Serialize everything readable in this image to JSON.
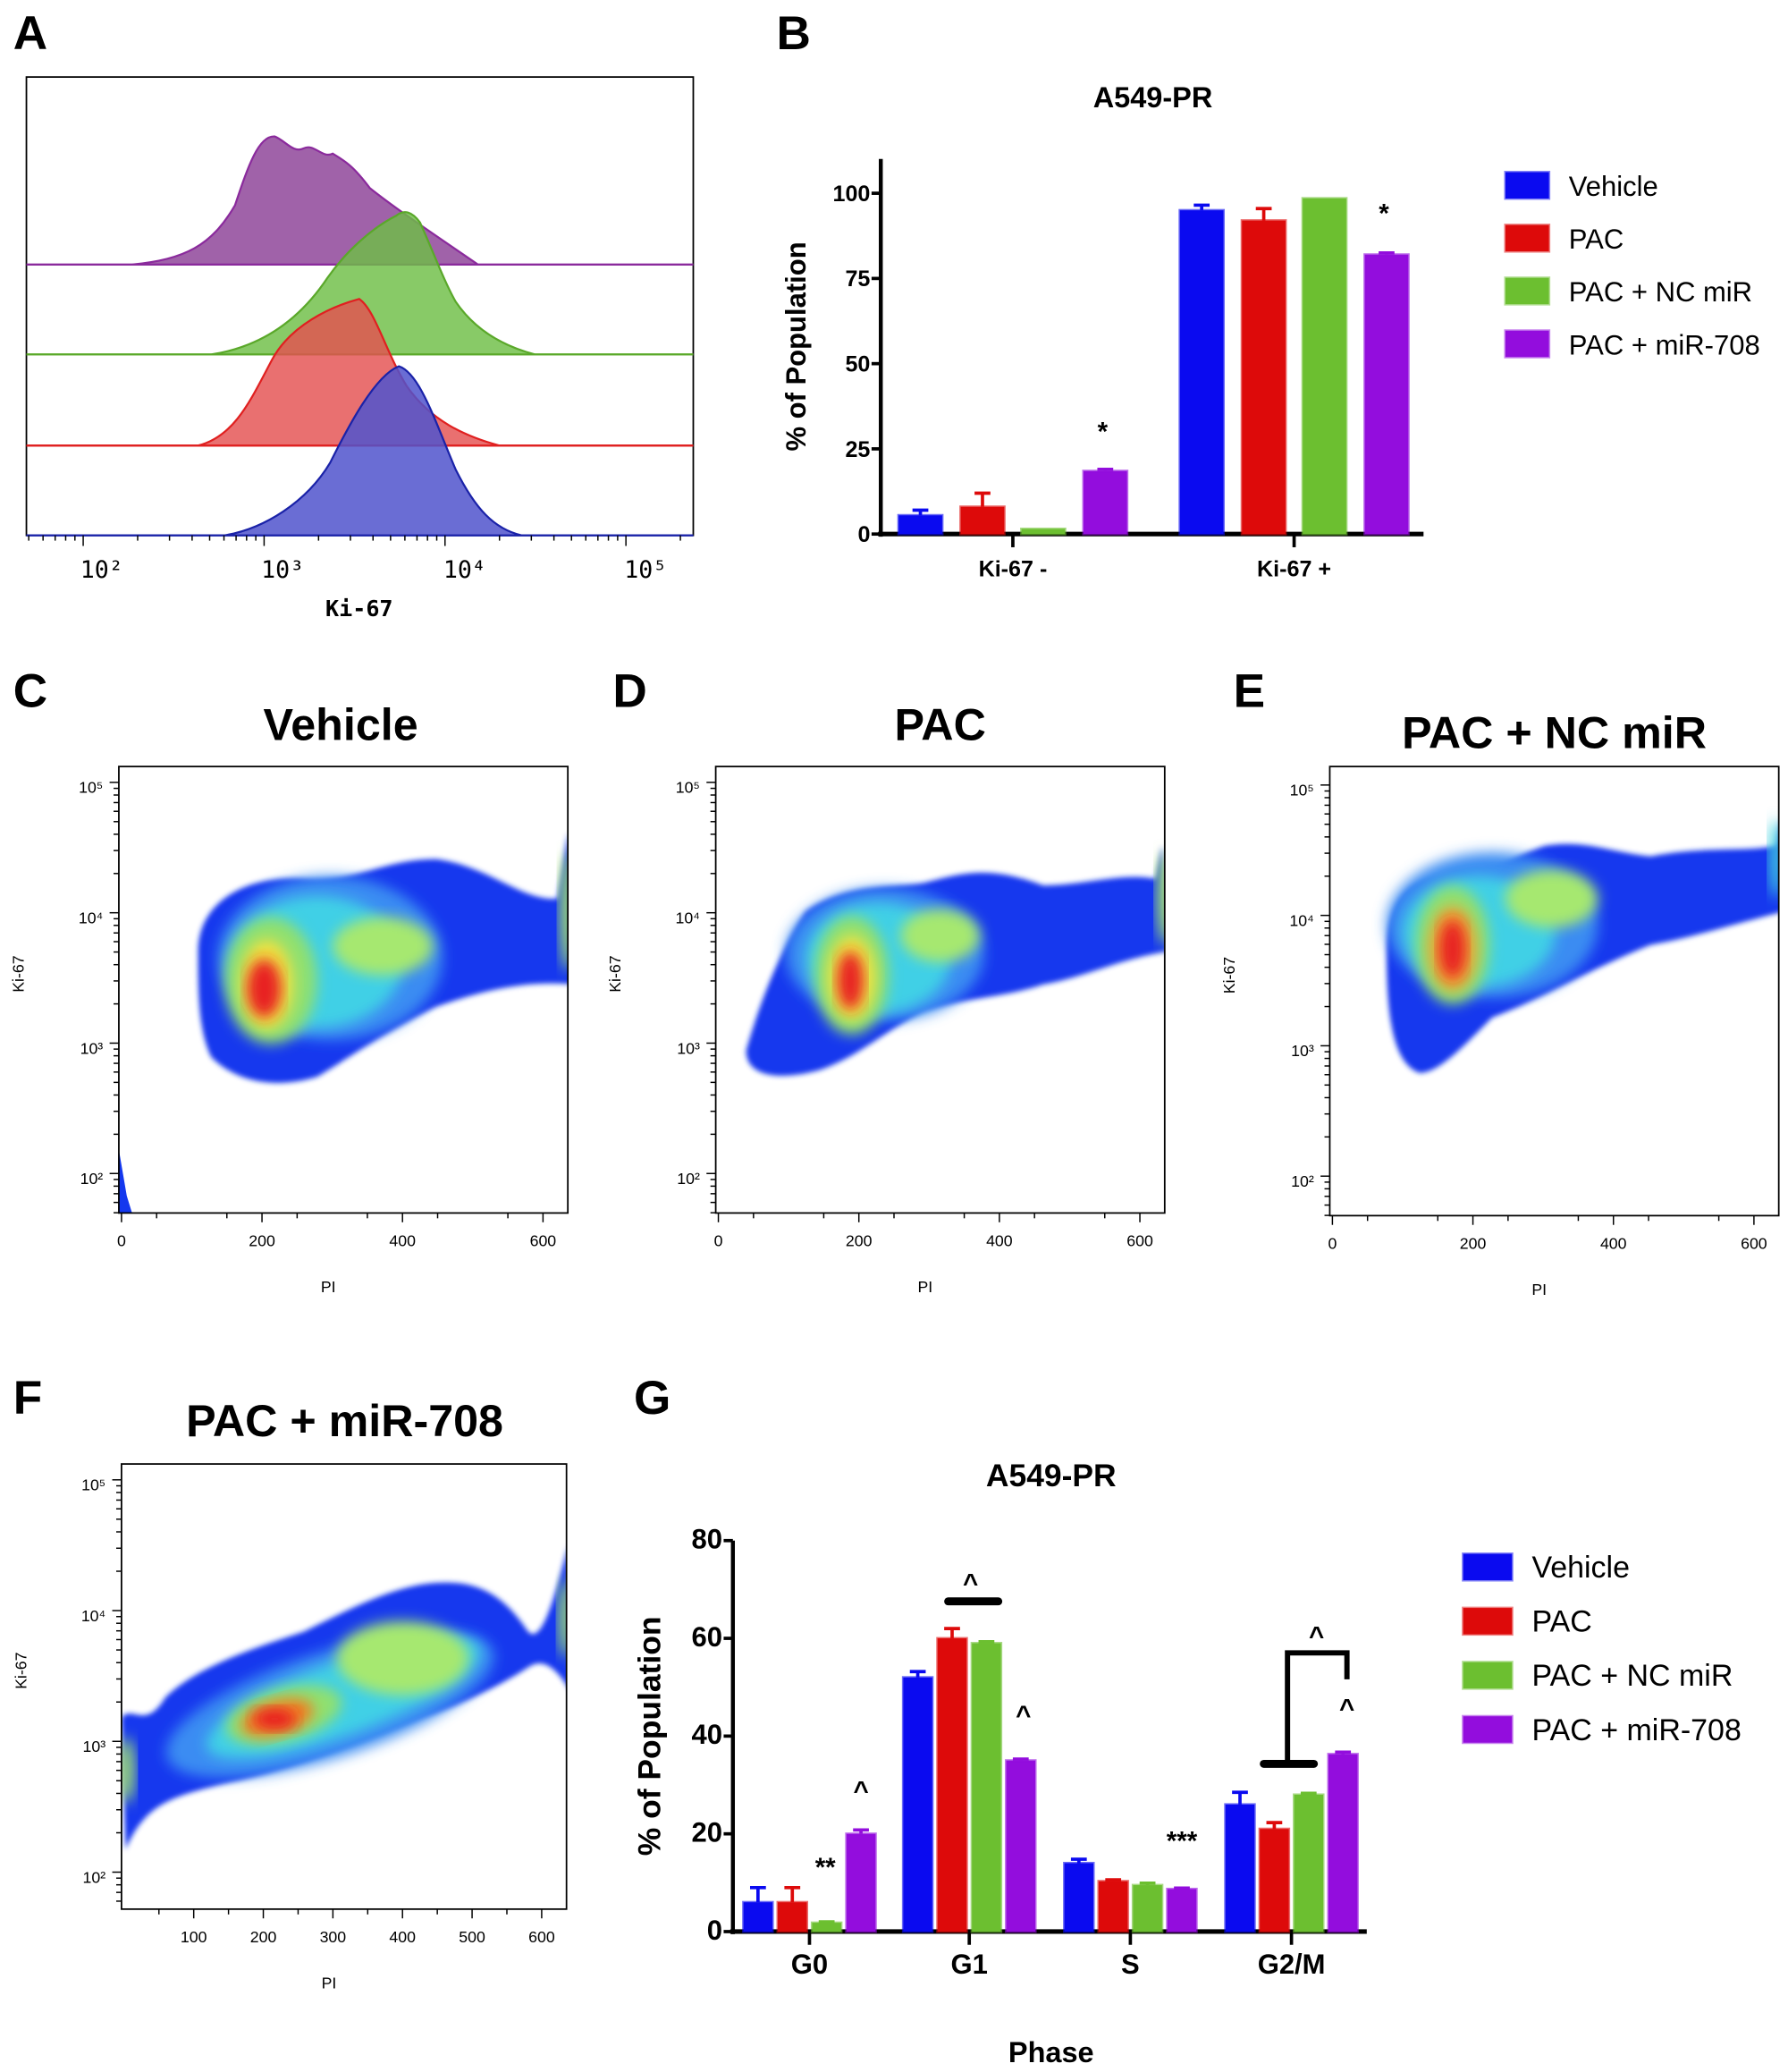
{
  "panel_labels": {
    "A": "A",
    "B": "B",
    "C": "C",
    "D": "D",
    "E": "E",
    "F": "F",
    "G": "G"
  },
  "legend": [
    "Vehicle",
    "PAC",
    "PAC + NC miR",
    "PAC + miR-708"
  ],
  "colors": {
    "Vehicle": "#0a0af0",
    "PAC": "#dd0a0a",
    "PAC + NC miR": "#6cbf30",
    "PAC + miR-708": "#930ddd"
  },
  "histogram": {
    "xlabel": "Ki-67",
    "xticks": [
      "10²",
      "10³",
      "10⁴",
      "10⁵"
    ],
    "scale": "log",
    "overlays": [
      "PAC + miR-708",
      "PAC + NC miR",
      "PAC",
      "Vehicle"
    ]
  },
  "flow_plots": [
    {
      "title": "Vehicle",
      "xlabel": "PI",
      "ylabel": "Ki-67",
      "xticks": [
        "0",
        "200",
        "400",
        "600"
      ],
      "yticks": [
        "10⁵",
        "10⁴",
        "10³",
        "10²"
      ]
    },
    {
      "title": "PAC",
      "xlabel": "PI",
      "ylabel": "Ki-67",
      "xticks": [
        "0",
        "200",
        "400",
        "600"
      ],
      "yticks": [
        "10⁵",
        "10⁴",
        "10³",
        "10²"
      ]
    },
    {
      "title": "PAC + NC miR",
      "xlabel": "PI",
      "ylabel": "Ki-67",
      "xticks": [
        "0",
        "200",
        "400",
        "600"
      ],
      "yticks": [
        "10⁵",
        "10⁴",
        "10³",
        "10²"
      ]
    },
    {
      "title": "PAC + miR-708",
      "xlabel": "PI",
      "ylabel": "Ki-67",
      "xticks": [
        "100",
        "200",
        "300",
        "400",
        "500",
        "600"
      ],
      "yticks": [
        "10⁵",
        "10⁴",
        "10³",
        "10²"
      ]
    }
  ],
  "chart_data": [
    {
      "type": "bar",
      "title": "A549-PR",
      "xlabel": "",
      "ylabel": "% of Population",
      "ylim": [
        0,
        110
      ],
      "yticks": [
        "0",
        "25",
        "50",
        "75",
        "100"
      ],
      "categories": [
        "Ki-67 -",
        "Ki-67 +"
      ],
      "legend_position": "right",
      "series": [
        {
          "name": "Vehicle",
          "values": [
            5.5,
            95
          ],
          "errors": [
            1.5,
            1.5
          ]
        },
        {
          "name": "PAC",
          "values": [
            8,
            92
          ],
          "errors": [
            4,
            3.5
          ]
        },
        {
          "name": "PAC + NC miR",
          "values": [
            1.5,
            98.5
          ],
          "errors": [
            0,
            0
          ]
        },
        {
          "name": "PAC + miR-708",
          "values": [
            18.5,
            82
          ],
          "errors": [
            0.5,
            0.5
          ]
        }
      ],
      "annotations": [
        {
          "category": "Ki-67 -",
          "series": "PAC + miR-708",
          "text": "*"
        },
        {
          "category": "Ki-67 +",
          "series": "PAC + miR-708",
          "text": "*"
        }
      ]
    },
    {
      "type": "bar",
      "title": "A549-PR",
      "xlabel": "Phase",
      "ylabel": "% of Population",
      "ylim": [
        0,
        80
      ],
      "yticks": [
        "0",
        "20",
        "40",
        "60",
        "80"
      ],
      "categories": [
        "G0",
        "G1",
        "S",
        "G2/M"
      ],
      "legend_position": "right",
      "series": [
        {
          "name": "Vehicle",
          "values": [
            6,
            52,
            14,
            26
          ],
          "errors": [
            3,
            1.2,
            0.8,
            2.5
          ]
        },
        {
          "name": "PAC",
          "values": [
            6,
            60,
            10.3,
            21
          ],
          "errors": [
            3,
            2,
            0.3,
            1.3
          ]
        },
        {
          "name": "PAC + NC miR",
          "values": [
            1.8,
            59,
            9.5,
            28
          ],
          "errors": [
            0.2,
            0.3,
            0.4,
            0.3
          ]
        },
        {
          "name": "PAC + miR-708",
          "values": [
            20,
            35,
            8.7,
            36.3
          ],
          "errors": [
            0.8,
            0.3,
            0.2,
            0.4
          ]
        }
      ],
      "annotations": [
        {
          "category": "G0",
          "series": "PAC + NC miR",
          "text": "**"
        },
        {
          "category": "G0",
          "series": "PAC + miR-708",
          "text": "^"
        },
        {
          "category": "G1",
          "series": "PAC vs PAC + NC miR",
          "text": "^"
        },
        {
          "category": "G1",
          "series": "PAC + miR-708",
          "text": "^"
        },
        {
          "category": "S",
          "series": "PAC + miR-708",
          "text": "***"
        },
        {
          "category": "G2/M",
          "series": "bracket",
          "text": "^"
        },
        {
          "category": "G2/M",
          "series": "PAC + miR-708",
          "text": "^"
        }
      ]
    }
  ]
}
